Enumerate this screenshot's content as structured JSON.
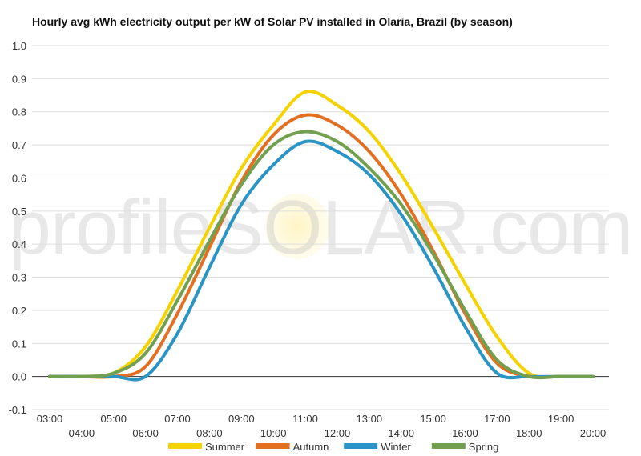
{
  "watermark": "profileSOLAR.com",
  "chart_data": {
    "type": "line",
    "title": "Hourly avg kWh electricity output per kW of Solar PV installed in Olaria, Brazil (by season)",
    "xlabel": "",
    "ylabel": "",
    "ylim": [
      -0.1,
      1.0
    ],
    "yticks": [
      "1.0",
      "0.9",
      "0.8",
      "0.7",
      "0.6",
      "0.5",
      "0.4",
      "0.3",
      "0.2",
      "0.1",
      "0.0",
      "-0.1"
    ],
    "x": [
      "03:00",
      "04:00",
      "05:00",
      "06:00",
      "07:00",
      "08:00",
      "09:00",
      "10:00",
      "11:00",
      "12:00",
      "13:00",
      "14:00",
      "15:00",
      "16:00",
      "17:00",
      "18:00",
      "19:00",
      "20:00"
    ],
    "grid": true,
    "legend_position": "bottom",
    "series": [
      {
        "name": "Summer",
        "color": "#f5d300",
        "values": [
          0.0,
          0.0,
          0.01,
          0.09,
          0.26,
          0.45,
          0.63,
          0.76,
          0.86,
          0.82,
          0.74,
          0.61,
          0.45,
          0.28,
          0.12,
          0.01,
          0.0,
          0.0
        ]
      },
      {
        "name": "Autumn",
        "color": "#e36f22",
        "values": [
          0.0,
          0.0,
          0.0,
          0.03,
          0.19,
          0.39,
          0.59,
          0.73,
          0.79,
          0.76,
          0.68,
          0.55,
          0.38,
          0.19,
          0.04,
          0.0,
          0.0,
          0.0
        ]
      },
      {
        "name": "Winter",
        "color": "#2a94c4",
        "values": [
          0.0,
          0.0,
          0.0,
          0.0,
          0.13,
          0.33,
          0.52,
          0.64,
          0.71,
          0.68,
          0.61,
          0.49,
          0.33,
          0.15,
          0.01,
          0.0,
          0.0,
          0.0
        ]
      },
      {
        "name": "Spring",
        "color": "#72a04f",
        "values": [
          0.0,
          0.0,
          0.01,
          0.07,
          0.23,
          0.41,
          0.58,
          0.7,
          0.74,
          0.71,
          0.63,
          0.52,
          0.37,
          0.2,
          0.05,
          0.0,
          0.0,
          0.0
        ]
      }
    ]
  }
}
